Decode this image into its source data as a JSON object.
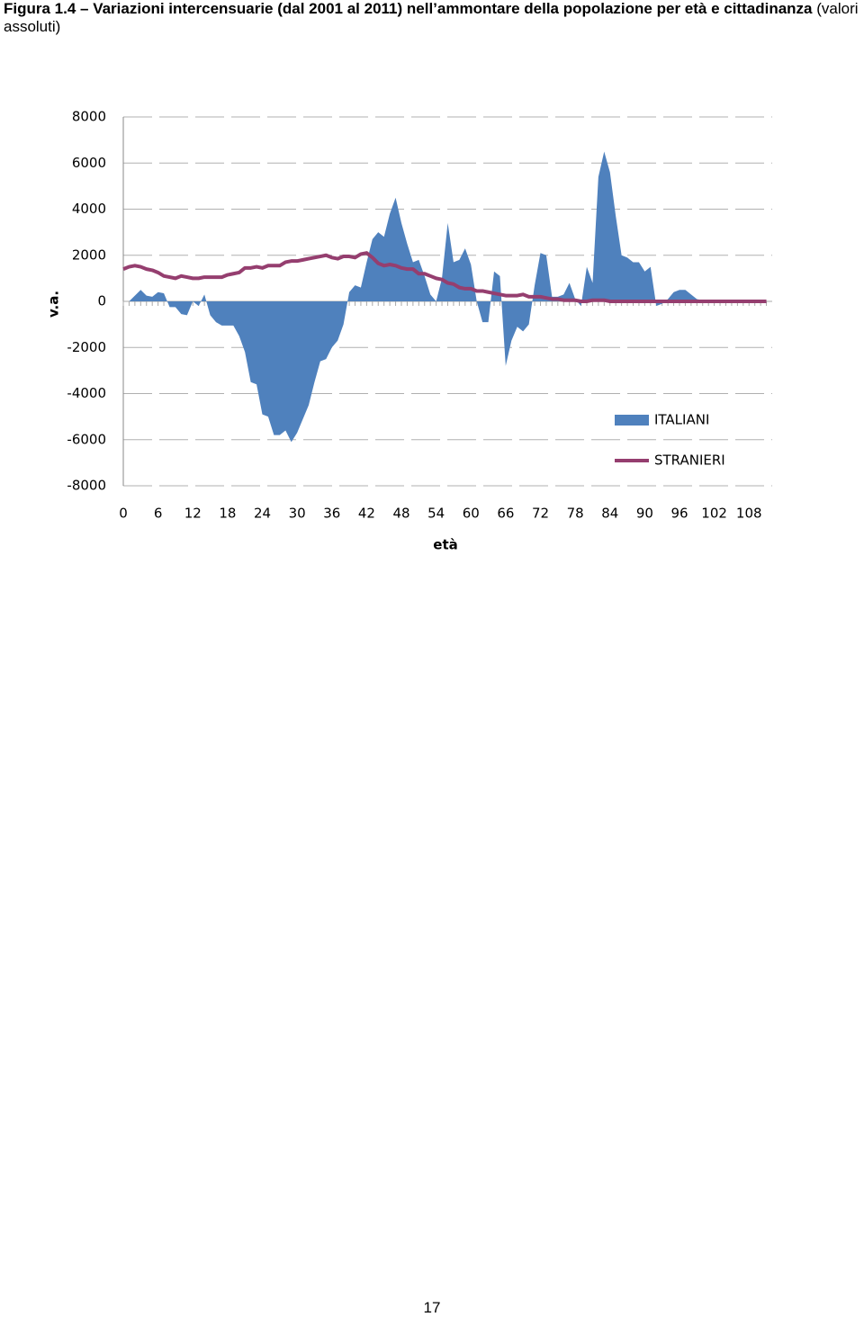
{
  "chart_data": {
    "type": "area-line",
    "title": "Figura 1.4 – Variazioni intercensuarie (dal 2001 al 2011) nell’ammontare della popolazione per età e cittadinanza",
    "subtitle": "(valori assoluti)",
    "x_label": "età",
    "y_label": "v.a.",
    "x": [
      0,
      1,
      2,
      3,
      4,
      5,
      6,
      7,
      8,
      9,
      10,
      11,
      12,
      13,
      14,
      15,
      16,
      17,
      18,
      19,
      20,
      21,
      22,
      23,
      24,
      25,
      26,
      27,
      28,
      29,
      30,
      31,
      32,
      33,
      34,
      35,
      36,
      37,
      38,
      39,
      40,
      41,
      42,
      43,
      44,
      45,
      46,
      47,
      48,
      49,
      50,
      51,
      52,
      53,
      54,
      55,
      56,
      57,
      58,
      59,
      60,
      61,
      62,
      63,
      64,
      65,
      66,
      67,
      68,
      69,
      70,
      71,
      72,
      73,
      74,
      75,
      76,
      77,
      78,
      79,
      80,
      81,
      82,
      83,
      84,
      85,
      86,
      87,
      88,
      89,
      90,
      91,
      92,
      93,
      94,
      95,
      96,
      97,
      98,
      99,
      100,
      101,
      102,
      103,
      104,
      105,
      106,
      107,
      108,
      109,
      110,
      111
    ],
    "series": [
      {
        "name": "ITALIANI",
        "kind": "area",
        "color": "#4f81bd",
        "values": [
          0,
          0,
          250,
          500,
          250,
          200,
          400,
          350,
          -250,
          -250,
          -550,
          -600,
          0,
          -200,
          300,
          -600,
          -900,
          -1050,
          -1050,
          -1050,
          -1500,
          -2200,
          -3500,
          -3600,
          -4900,
          -5000,
          -5800,
          -5800,
          -5600,
          -6100,
          -5700,
          -5100,
          -4500,
          -3500,
          -2600,
          -2500,
          -2000,
          -1700,
          -1000,
          400,
          700,
          600,
          1700,
          2700,
          3000,
          2800,
          3800,
          4500,
          3400,
          2500,
          1700,
          1800,
          1100,
          300,
          0,
          1000,
          3400,
          1700,
          1800,
          2300,
          1600,
          0,
          -900,
          -900,
          1300,
          1100,
          -2800,
          -1700,
          -1100,
          -1300,
          -1000,
          700,
          2100,
          2000,
          200,
          200,
          300,
          800,
          100,
          -200,
          1500,
          800,
          5400,
          6500,
          5600,
          3700,
          2000,
          1900,
          1700,
          1700,
          1300,
          1500,
          -200,
          -100,
          100,
          400,
          500,
          500,
          300,
          100,
          50,
          0,
          0,
          0,
          0,
          0,
          0,
          0,
          0,
          0,
          0,
          0
        ]
      },
      {
        "name": "STRANIERI",
        "kind": "line",
        "color": "#953e6f",
        "values": [
          1400,
          1500,
          1550,
          1500,
          1400,
          1350,
          1250,
          1100,
          1050,
          1000,
          1100,
          1050,
          1000,
          1000,
          1050,
          1050,
          1050,
          1050,
          1150,
          1200,
          1250,
          1450,
          1450,
          1500,
          1450,
          1550,
          1550,
          1550,
          1700,
          1750,
          1750,
          1800,
          1850,
          1900,
          1950,
          2000,
          1900,
          1850,
          1950,
          1950,
          1900,
          2050,
          2100,
          1900,
          1650,
          1550,
          1600,
          1550,
          1450,
          1400,
          1400,
          1200,
          1200,
          1100,
          1000,
          950,
          800,
          750,
          600,
          550,
          550,
          450,
          450,
          400,
          350,
          300,
          250,
          250,
          250,
          300,
          200,
          200,
          200,
          150,
          100,
          100,
          50,
          50,
          50,
          0,
          0,
          50,
          50,
          50,
          0,
          0,
          0,
          0,
          0,
          0,
          0,
          0,
          0,
          0,
          0,
          0,
          0,
          0,
          0,
          0,
          0,
          0,
          0,
          0,
          0,
          0,
          0,
          0,
          0,
          0,
          0,
          0
        ]
      }
    ],
    "xlim": [
      0,
      112
    ],
    "xticks": [
      0,
      6,
      12,
      18,
      24,
      30,
      36,
      42,
      48,
      54,
      60,
      66,
      72,
      78,
      84,
      90,
      96,
      102,
      108
    ],
    "ylim": [
      -8000,
      8000
    ],
    "yticks": [
      -8000,
      -6000,
      -4000,
      -2000,
      0,
      2000,
      4000,
      6000,
      8000
    ],
    "grid": true,
    "legend": "right"
  },
  "page_number": "17"
}
